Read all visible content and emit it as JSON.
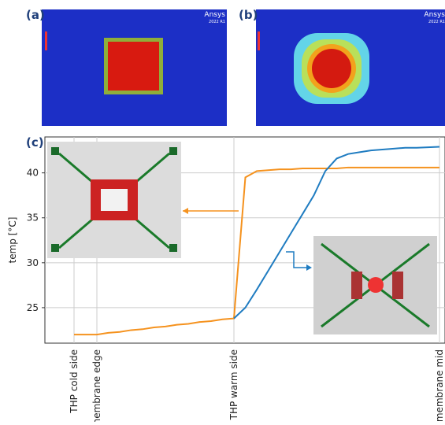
{
  "panels": {
    "a": "(a)",
    "b": "(b)",
    "c": "(c)"
  },
  "brand": {
    "name": "Ansys",
    "version": "2022 R1"
  },
  "chart_data": {
    "type": "line",
    "ylabel": "temp [°C]",
    "categories": [
      "THP cold side",
      null,
      "membrane edge",
      null,
      null,
      null,
      null,
      null,
      null,
      null,
      null,
      null,
      null,
      null,
      "THP warm side",
      null,
      null,
      null,
      null,
      null,
      null,
      null,
      null,
      null,
      null,
      null,
      null,
      null,
      null,
      null,
      null,
      null,
      "membrane mid"
    ],
    "series": [
      {
        "color": "#f5921e",
        "values": [
          22,
          22,
          22,
          22.2,
          22.3,
          22.5,
          22.6,
          22.8,
          22.9,
          23.1,
          23.2,
          23.4,
          23.5,
          23.7,
          23.8,
          39.5,
          40.2,
          40.3,
          40.4,
          40.4,
          40.5,
          40.5,
          40.5,
          40.5,
          40.6,
          40.6,
          40.6,
          40.6,
          40.6,
          40.6,
          40.6,
          40.6,
          40.6
        ]
      },
      {
        "color": "#1f7cc1",
        "values": [
          null,
          null,
          null,
          null,
          null,
          null,
          null,
          null,
          null,
          null,
          null,
          null,
          null,
          null,
          23.8,
          25,
          27,
          29.1,
          31.2,
          33.3,
          35.4,
          37.5,
          40.2,
          41.6,
          42.1,
          42.3,
          42.5,
          42.6,
          42.7,
          42.8,
          42.8,
          42.85,
          42.9
        ]
      }
    ],
    "ylim": [
      21.05,
      44
    ],
    "yticks": [
      25,
      30,
      35,
      40
    ],
    "grid": true
  }
}
